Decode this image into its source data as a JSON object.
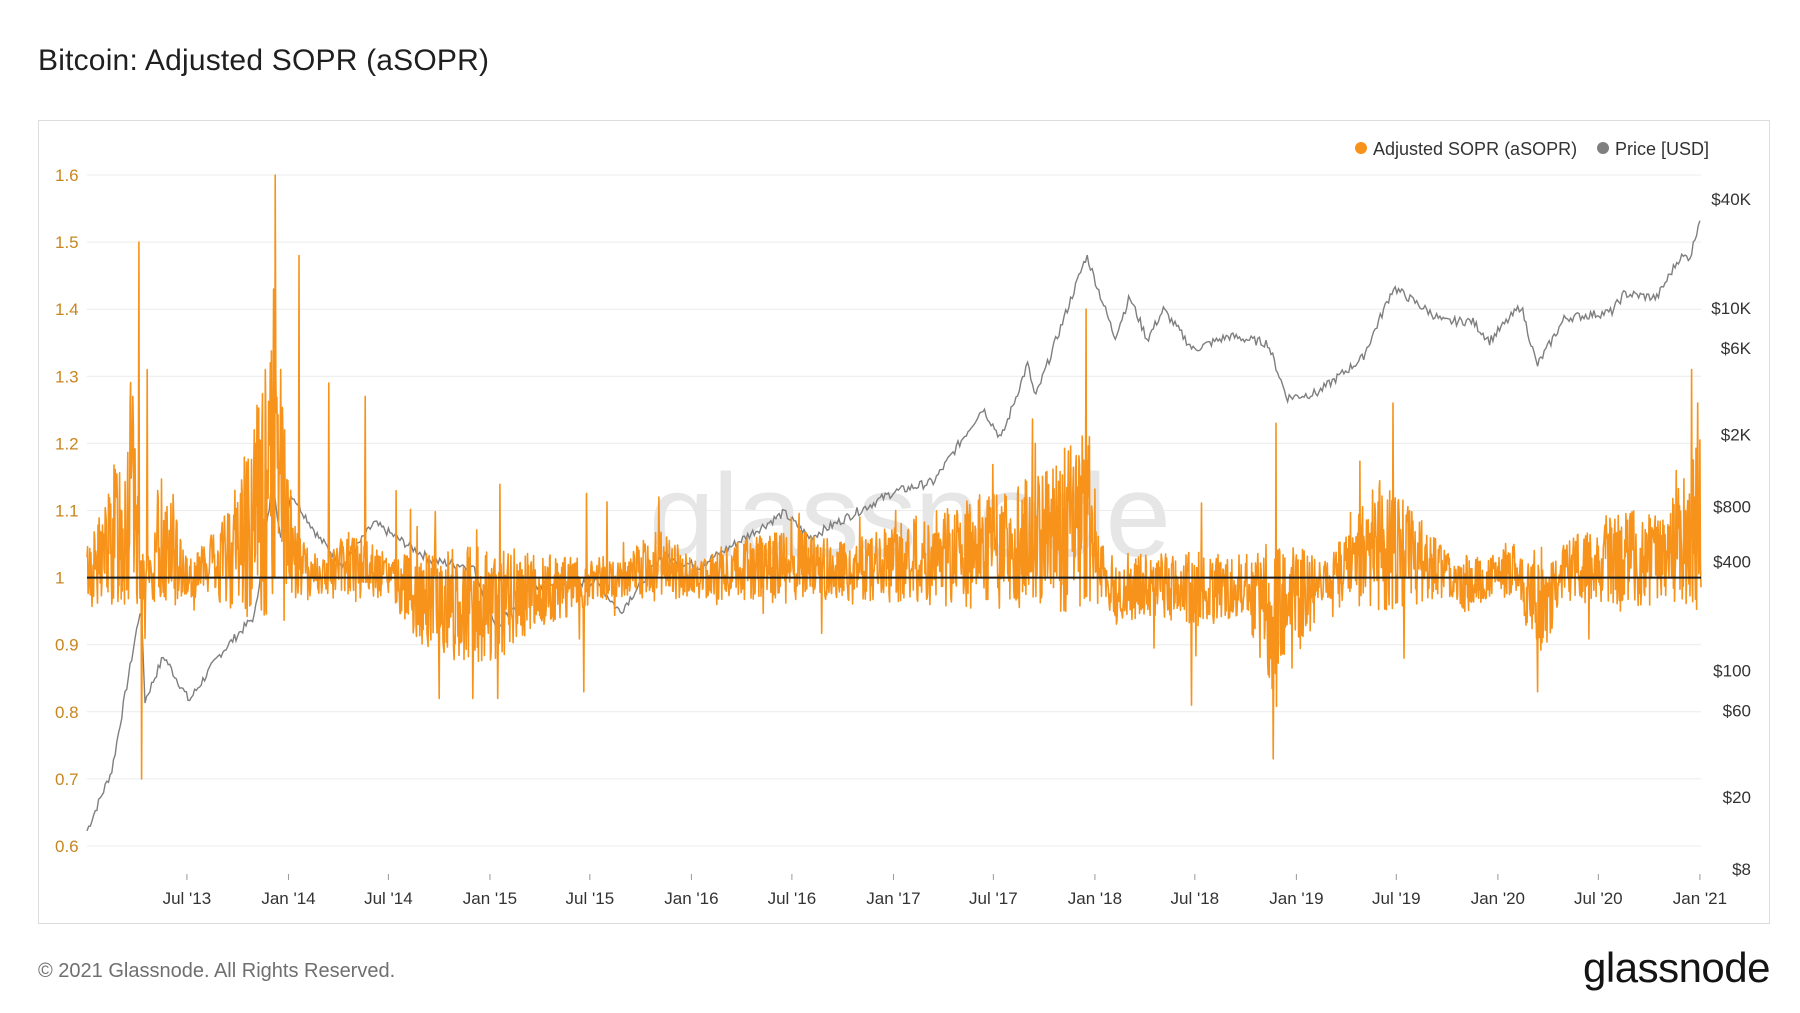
{
  "page": {
    "title": "Bitcoin: Adjusted SOPR (aSOPR)",
    "copyright": "© 2021 Glassnode. All Rights Reserved.",
    "brand": "glassnode",
    "watermark": "glassnode"
  },
  "colors": {
    "asopr": "#f7931a",
    "price": "#7f7f7f",
    "axis_left": "#c8861f",
    "axis_right": "#333333",
    "baseline": "#1a1a1a"
  },
  "chart_data": {
    "type": "line",
    "title": "Bitcoin: Adjusted SOPR (aSOPR)",
    "legend_placement": "top-right",
    "grid": "horizontal",
    "x_range": [
      "2013-01-01",
      "2021-01-03"
    ],
    "x_ticks": [
      {
        "date": "2013-07-01",
        "label": "Jul '13"
      },
      {
        "date": "2014-01-01",
        "label": "Jan '14"
      },
      {
        "date": "2014-07-01",
        "label": "Jul '14"
      },
      {
        "date": "2015-01-01",
        "label": "Jan '15"
      },
      {
        "date": "2015-07-01",
        "label": "Jul '15"
      },
      {
        "date": "2016-01-01",
        "label": "Jan '16"
      },
      {
        "date": "2016-07-01",
        "label": "Jul '16"
      },
      {
        "date": "2017-01-01",
        "label": "Jan '17"
      },
      {
        "date": "2017-07-01",
        "label": "Jul '17"
      },
      {
        "date": "2018-01-01",
        "label": "Jan '18"
      },
      {
        "date": "2018-07-01",
        "label": "Jul '18"
      },
      {
        "date": "2019-01-01",
        "label": "Jan '19"
      },
      {
        "date": "2019-07-01",
        "label": "Jul '19"
      },
      {
        "date": "2020-01-01",
        "label": "Jan '20"
      },
      {
        "date": "2020-07-01",
        "label": "Jul '20"
      },
      {
        "date": "2021-01-01",
        "label": "Jan '21"
      }
    ],
    "y_left": {
      "range": [
        0.6,
        1.6
      ],
      "ticks": [
        0.6,
        0.7,
        0.8,
        0.9,
        1,
        1.1,
        1.2,
        1.3,
        1.4,
        1.5,
        1.6
      ],
      "tick_labels": [
        "0.6",
        "0.7",
        "0.8",
        "0.9",
        "1",
        "1.1",
        "1.2",
        "1.3",
        "1.4",
        "1.5",
        "1.6"
      ],
      "baseline": 1
    },
    "y_right": {
      "scale": "log",
      "range": [
        8,
        40000
      ],
      "ticks": [
        8,
        20,
        60,
        100,
        400,
        800,
        2000,
        6000,
        10000,
        40000
      ],
      "tick_labels": [
        "$8",
        "$20",
        "$60",
        "$100",
        "$400",
        "$800",
        "$2K",
        "$6K",
        "$10K",
        "$40K"
      ]
    },
    "series": [
      {
        "name": "Adjusted SOPR (aSOPR)",
        "axis": "left",
        "base_points": [
          [
            "2013-01-01",
            1.01
          ],
          [
            "2013-02-15",
            1.05
          ],
          [
            "2013-03-20",
            1.12
          ],
          [
            "2013-04-15",
            0.97
          ],
          [
            "2013-05-15",
            1.06
          ],
          [
            "2013-07-01",
            1.0
          ],
          [
            "2013-09-01",
            1.02
          ],
          [
            "2013-11-01",
            1.09
          ],
          [
            "2013-12-05",
            1.14
          ],
          [
            "2014-01-15",
            1.02
          ],
          [
            "2014-03-01",
            1.0
          ],
          [
            "2014-05-01",
            1.02
          ],
          [
            "2014-07-01",
            1.0
          ],
          [
            "2014-09-01",
            0.97
          ],
          [
            "2014-11-01",
            0.96
          ],
          [
            "2015-01-15",
            0.96
          ],
          [
            "2015-04-01",
            0.98
          ],
          [
            "2015-06-01",
            0.99
          ],
          [
            "2015-09-01",
            1.0
          ],
          [
            "2015-11-01",
            1.02
          ],
          [
            "2016-01-01",
            1.0
          ],
          [
            "2016-06-15",
            1.02
          ],
          [
            "2016-10-01",
            1.01
          ],
          [
            "2017-01-01",
            1.02
          ],
          [
            "2017-05-01",
            1.04
          ],
          [
            "2017-08-01",
            1.04
          ],
          [
            "2017-10-01",
            1.06
          ],
          [
            "2017-12-15",
            1.08
          ],
          [
            "2018-02-01",
            0.98
          ],
          [
            "2018-04-01",
            0.99
          ],
          [
            "2018-07-01",
            0.98
          ],
          [
            "2018-10-01",
            0.99
          ],
          [
            "2018-11-25",
            0.93
          ],
          [
            "2019-01-15",
            0.97
          ],
          [
            "2019-03-01",
            1.0
          ],
          [
            "2019-06-01",
            1.05
          ],
          [
            "2019-08-01",
            1.03
          ],
          [
            "2019-11-01",
            0.99
          ],
          [
            "2020-02-01",
            1.01
          ],
          [
            "2020-03-15",
            0.95
          ],
          [
            "2020-05-01",
            1.01
          ],
          [
            "2020-08-01",
            1.03
          ],
          [
            "2020-11-01",
            1.03
          ],
          [
            "2020-12-15",
            1.06
          ],
          [
            "2021-01-03",
            1.1
          ]
        ],
        "spikes": [
          [
            "2013-04-05",
            1.5
          ],
          [
            "2013-04-10",
            0.7
          ],
          [
            "2013-04-20",
            1.31
          ],
          [
            "2013-03-25",
            1.27
          ],
          [
            "2013-11-20",
            1.31
          ],
          [
            "2013-12-05",
            1.43
          ],
          [
            "2013-12-08",
            1.6
          ],
          [
            "2013-12-18",
            1.31
          ],
          [
            "2014-01-20",
            1.48
          ],
          [
            "2014-03-15",
            1.29
          ],
          [
            "2014-05-20",
            1.27
          ],
          [
            "2014-10-01",
            0.82
          ],
          [
            "2014-12-01",
            0.82
          ],
          [
            "2015-01-15",
            0.82
          ],
          [
            "2015-06-20",
            0.83
          ],
          [
            "2015-11-03",
            1.12
          ],
          [
            "2017-01-05",
            1.1
          ],
          [
            "2017-09-15",
            1.2
          ],
          [
            "2017-12-16",
            1.4
          ],
          [
            "2017-12-22",
            1.21
          ],
          [
            "2018-06-25",
            0.81
          ],
          [
            "2018-11-20",
            0.73
          ],
          [
            "2018-11-25",
            1.23
          ],
          [
            "2019-06-25",
            1.26
          ],
          [
            "2019-07-15",
            0.88
          ],
          [
            "2020-03-13",
            0.83
          ],
          [
            "2020-12-17",
            1.31
          ],
          [
            "2020-12-28",
            1.26
          ]
        ]
      },
      {
        "name": "Price [USD]",
        "axis": "right",
        "points": [
          [
            "2013-01-01",
            13
          ],
          [
            "2013-02-15",
            28
          ],
          [
            "2013-04-09",
            230
          ],
          [
            "2013-04-16",
            68
          ],
          [
            "2013-05-20",
            120
          ],
          [
            "2013-07-05",
            68
          ],
          [
            "2013-09-01",
            125
          ],
          [
            "2013-11-01",
            200
          ],
          [
            "2013-12-04",
            1140
          ],
          [
            "2013-12-18",
            520
          ],
          [
            "2014-01-06",
            950
          ],
          [
            "2014-02-25",
            540
          ],
          [
            "2014-04-10",
            380
          ],
          [
            "2014-06-05",
            650
          ],
          [
            "2014-09-20",
            400
          ],
          [
            "2014-12-01",
            375
          ],
          [
            "2015-01-14",
            170
          ],
          [
            "2015-03-10",
            285
          ],
          [
            "2015-07-12",
            310
          ],
          [
            "2015-08-25",
            210
          ],
          [
            "2015-11-04",
            420
          ],
          [
            "2016-01-15",
            375
          ],
          [
            "2016-06-17",
            740
          ],
          [
            "2016-08-02",
            540
          ],
          [
            "2016-12-31",
            960
          ],
          [
            "2017-03-15",
            1100
          ],
          [
            "2017-06-12",
            2800
          ],
          [
            "2017-07-15",
            1900
          ],
          [
            "2017-09-01",
            4900
          ],
          [
            "2017-09-15",
            3200
          ],
          [
            "2017-12-17",
            19500
          ],
          [
            "2018-02-06",
            6900
          ],
          [
            "2018-03-05",
            11500
          ],
          [
            "2018-04-06",
            6700
          ],
          [
            "2018-05-05",
            9800
          ],
          [
            "2018-06-28",
            5900
          ],
          [
            "2018-09-01",
            7000
          ],
          [
            "2018-11-10",
            6400
          ],
          [
            "2018-12-15",
            3200
          ],
          [
            "2019-02-08",
            3400
          ],
          [
            "2019-05-01",
            5300
          ],
          [
            "2019-06-26",
            13000
          ],
          [
            "2019-09-25",
            8400
          ],
          [
            "2019-11-15",
            8500
          ],
          [
            "2019-12-17",
            6600
          ],
          [
            "2020-02-12",
            10300
          ],
          [
            "2020-03-12",
            4800
          ],
          [
            "2020-05-01",
            8800
          ],
          [
            "2020-07-25",
            9500
          ],
          [
            "2020-08-17",
            12000
          ],
          [
            "2020-10-15",
            11400
          ],
          [
            "2020-11-25",
            19000
          ],
          [
            "2020-12-15",
            19300
          ],
          [
            "2021-01-03",
            33500
          ]
        ]
      }
    ]
  }
}
